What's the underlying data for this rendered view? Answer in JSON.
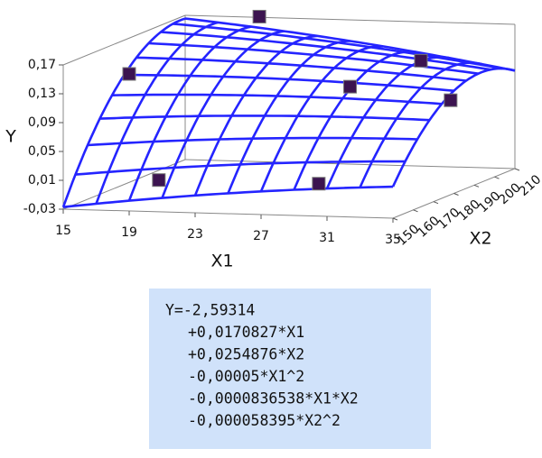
{
  "chart_data": {
    "type": "surface3d",
    "xlabel": "X1",
    "ylabel": "X2",
    "zlabel": "Y",
    "xlim": [
      15,
      35
    ],
    "xticks": [
      15,
      19,
      23,
      27,
      31,
      35
    ],
    "ylim": [
      150,
      210
    ],
    "yticks": [
      150,
      160,
      170,
      180,
      190,
      200,
      210
    ],
    "zlim": [
      -0.03,
      0.17
    ],
    "zticks": [
      {
        "value": -0.03,
        "label": "-0,03"
      },
      {
        "value": 0.01,
        "label": "0,01"
      },
      {
        "value": 0.05,
        "label": "0,05"
      },
      {
        "value": 0.09,
        "label": "0,09"
      },
      {
        "value": 0.13,
        "label": "0,13"
      },
      {
        "value": 0.17,
        "label": "0,17"
      }
    ],
    "surface_color": "#2424ff",
    "point_color": "#3c1450",
    "points": {
      "x1": [
        19,
        20.8,
        19.5,
        28.7,
        30.5,
        29.3,
        34.8
      ],
      "x2": [
        150,
        150,
        210,
        180,
        150,
        210,
        180
      ],
      "z": [
        0.16,
        0.014,
        0.171,
        0.114,
        0.015,
        0.116,
        0.099
      ]
    },
    "equation": [
      {
        "value": -2.59314,
        "label": "Y=-2,59314"
      },
      {
        "value": 0.0170827,
        "label": "+0,0170827*X1"
      },
      {
        "value": 0.0254876,
        "label": "+0,0254876*X2"
      },
      {
        "value": -5e-05,
        "label": "-0,00005*X1^2"
      },
      {
        "value": -8.36538e-05,
        "label": "-0,0000836538*X1*X2"
      },
      {
        "value": -5.8395e-05,
        "label": "-0,000058395*X2^2"
      }
    ],
    "equation_bg": "#d0e2fa"
  }
}
